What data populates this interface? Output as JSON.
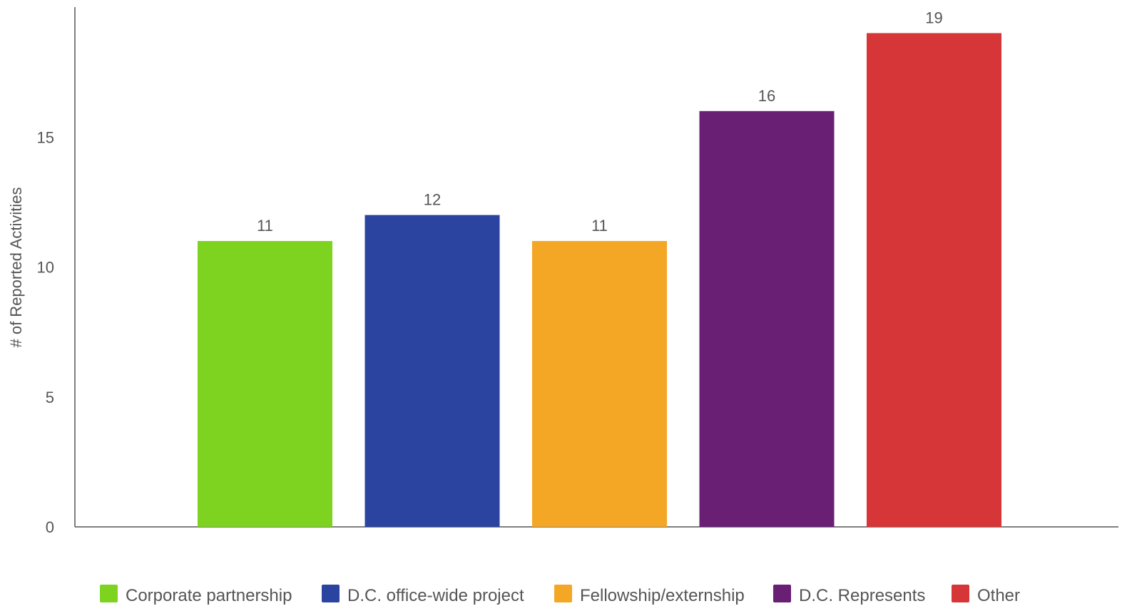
{
  "chart_data": {
    "type": "bar",
    "title": "",
    "xlabel": "",
    "ylabel": "# of Reported Activities",
    "ylim": [
      0,
      20
    ],
    "yticks": [
      0,
      5,
      10,
      15
    ],
    "grid": false,
    "legend_position": "bottom",
    "categories": [
      "Corporate partnership",
      "D.C. office-wide project",
      "Fellowship/externship",
      "D.C. Represents",
      "Other"
    ],
    "values": [
      11,
      12,
      11,
      16,
      19
    ],
    "colors": [
      "#7ed321",
      "#2b44a0",
      "#f4a625",
      "#681f74",
      "#d63637"
    ],
    "axis_color": "#555555",
    "text_color": "#555555"
  }
}
